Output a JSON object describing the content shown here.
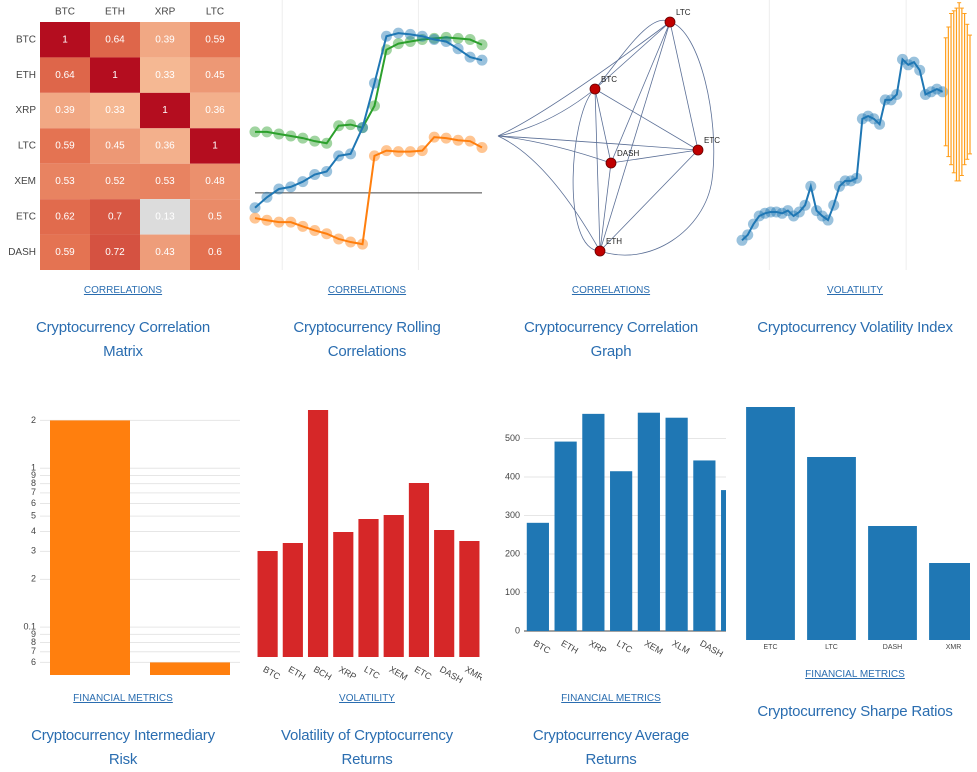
{
  "cards": [
    {
      "category": "CORRELATIONS",
      "title": "Cryptocurrency Correlation Matrix",
      "chart": {
        "type": "heatmap",
        "x": [
          "BTC",
          "ETH",
          "XRP",
          "LTC"
        ],
        "y": [
          "BTC",
          "ETH",
          "XRP",
          "LTC",
          "XEM",
          "ETC",
          "DASH"
        ],
        "z": [
          [
            1,
            0.64,
            0.39,
            0.59
          ],
          [
            0.64,
            1,
            0.33,
            0.45
          ],
          [
            0.39,
            0.33,
            1,
            0.36
          ],
          [
            0.59,
            0.45,
            0.36,
            1
          ],
          [
            0.53,
            0.52,
            0.53,
            0.48
          ],
          [
            0.62,
            0.7,
            0.13,
            0.5
          ],
          [
            0.59,
            0.72,
            0.43,
            0.6
          ]
        ]
      }
    },
    {
      "category": "CORRELATIONS",
      "title": "Cryptocurrency Rolling Correlations",
      "chart": {
        "type": "line",
        "ylim": [
          -0.4,
          1
        ],
        "zeroline": true,
        "series": [
          {
            "color": "#2ca02c",
            "values": [
              0.316,
              0.316,
              0.305,
              0.295,
              0.284,
              0.268,
              0.257,
              0.348,
              0.354,
              0.338,
              0.451,
              0.742,
              0.774,
              0.785,
              0.795,
              0.801,
              0.806,
              0.801,
              0.795,
              0.768
            ]
          },
          {
            "color": "#1f77b4",
            "values": [
              -0.077,
              -0.023,
              0.02,
              0.031,
              0.058,
              0.095,
              0.111,
              0.192,
              0.202,
              0.338,
              0.569,
              0.812,
              0.828,
              0.822,
              0.812,
              0.795,
              0.785,
              0.747,
              0.704,
              0.688
            ]
          },
          {
            "color": "#ff7f0e",
            "values": [
              -0.131,
              -0.142,
              -0.152,
              -0.152,
              -0.174,
              -0.195,
              -0.212,
              -0.239,
              -0.255,
              -0.266,
              0.192,
              0.219,
              0.214,
              0.214,
              0.219,
              0.289,
              0.284,
              0.273,
              0.268,
              0.235
            ]
          }
        ]
      }
    },
    {
      "category": "CORRELATIONS",
      "title": "Cryptocurrency Correlation Graph",
      "chart": {
        "type": "network",
        "nodes": [
          "LTC",
          "BTC",
          "ETC",
          "DASH",
          "ETH"
        ],
        "color": "#c00000"
      }
    },
    {
      "category": "VOLATILITY",
      "title": "Cryptocurrency Volatility Index",
      "chart": {
        "type": "line",
        "ylim": [
          0,
          100
        ],
        "series": [
          {
            "color": "#1f77b4",
            "values": [
              11,
              13,
              17,
              20,
              21,
              21.5,
              21.5,
              21,
              22,
              20,
              21.5,
              24,
              31,
              22,
              20,
              18.5,
              24,
              31,
              33,
              33,
              34,
              56,
              57,
              56,
              54,
              63,
              63,
              65,
              78,
              76,
              77,
              74,
              65,
              66,
              67,
              66
            ]
          }
        ],
        "error_bars": {
          "color": "#ff9f1c",
          "values": [
            66,
            66,
            67,
            66,
            65,
            66,
            66,
            67,
            66,
            65
          ],
          "errors": [
            20,
            24,
            28,
            30,
            32,
            33,
            31,
            28,
            25,
            22
          ]
        }
      }
    },
    {
      "category": "FINANCIAL METRICS",
      "title": "Cryptocurrency Intermediary Risk",
      "chart": {
        "type": "bar",
        "log_y": true,
        "color": "#ff7f0e",
        "values": [
          2,
          0.06
        ],
        "ylim": [
          0.05,
          2.5
        ],
        "yticks": [
          2,
          1,
          {
            "value": 0.9,
            "label": "9"
          },
          {
            "value": 0.8,
            "label": "8"
          },
          {
            "value": 0.7,
            "label": "7"
          },
          {
            "value": 0.6,
            "label": "6"
          },
          {
            "value": 0.5,
            "label": "5"
          },
          {
            "value": 0.4,
            "label": "4"
          },
          {
            "value": 0.3,
            "label": "3"
          },
          {
            "value": 0.2,
            "label": "2"
          },
          0.1,
          {
            "value": 0.09,
            "label": "9"
          },
          {
            "value": 0.08,
            "label": "8"
          },
          {
            "value": 0.07,
            "label": "7"
          },
          {
            "value": 0.06,
            "label": "6"
          }
        ],
        "grid": true
      }
    },
    {
      "category": "VOLATILITY",
      "title": "Volatility of Cryptocurrency Returns",
      "chart": {
        "type": "bar",
        "color": "#d62728",
        "categories": [
          "BTC",
          "ETH",
          "BCH",
          "XRP",
          "LTC",
          "XEM",
          "ETC",
          "DASH",
          "XMR"
        ],
        "values": [
          106,
          114,
          247,
          125,
          138,
          142,
          174,
          127,
          116
        ],
        "ylim": [
          0,
          252
        ]
      }
    },
    {
      "category": "FINANCIAL METRICS",
      "title": "Cryptocurrency Average Returns",
      "chart": {
        "type": "bar",
        "color": "#1f77b4",
        "categories": [
          "BTC",
          "ETH",
          "XRP",
          "LTC",
          "XEM",
          "XLM",
          "DASH",
          null
        ],
        "values": [
          281,
          492,
          564,
          415,
          567,
          554,
          443,
          366
        ],
        "ylim": [
          0,
          600
        ],
        "yticks": [
          0,
          100,
          200,
          300,
          400,
          500
        ],
        "grid": true
      }
    },
    {
      "category": "FINANCIAL METRICS",
      "title": "Cryptocurrency Sharpe Ratios",
      "chart": {
        "type": "bar",
        "color": "#1f77b4",
        "categories": [
          "ETC",
          "LTC",
          "DASH",
          "XMR"
        ],
        "values": [
          233,
          183,
          114,
          77
        ],
        "ylim": [
          0,
          240
        ]
      }
    }
  ]
}
